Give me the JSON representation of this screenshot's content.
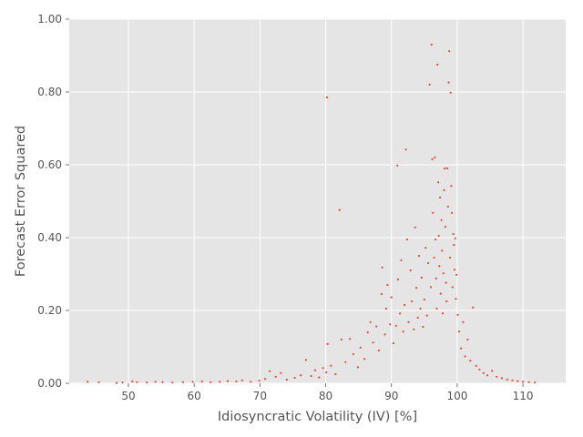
{
  "chart_data": {
    "type": "scatter",
    "xlabel": "Idiosyncratic Volatility (IV) [%]",
    "ylabel": "Forecast Error Squared",
    "xlim": [
      41,
      116.5
    ],
    "ylim": [
      0,
      1
    ],
    "xticks": [
      50,
      60,
      70,
      80,
      90,
      100,
      110
    ],
    "yticks": [
      0.0,
      0.2,
      0.4,
      0.6,
      0.8,
      1.0
    ],
    "xtick_labels": [
      "50",
      "60",
      "70",
      "80",
      "90",
      "100",
      "110"
    ],
    "ytick_labels": [
      "0.00",
      "0.20",
      "0.40",
      "0.60",
      "0.80",
      "1.00"
    ],
    "grid": true,
    "legend": "none",
    "colors": {
      "marker": "#E24A33",
      "background": "#E5E5E5",
      "grid": "#ffffff",
      "text": "#555555"
    },
    "series": [
      {
        "points": [
          [
            43.8,
            0.004
          ],
          [
            45.5,
            0.003
          ],
          [
            48.2,
            0.001
          ],
          [
            49.1,
            0.002
          ],
          [
            50.6,
            0.005
          ],
          [
            51.3,
            0.003
          ],
          [
            52.8,
            0.002
          ],
          [
            54.1,
            0.004
          ],
          [
            55.2,
            0.003
          ],
          [
            56.7,
            0.002
          ],
          [
            58.3,
            0.003
          ],
          [
            59.8,
            0.004
          ],
          [
            61.2,
            0.005
          ],
          [
            62.5,
            0.003
          ],
          [
            63.9,
            0.004
          ],
          [
            65.1,
            0.006
          ],
          [
            66.4,
            0.005
          ],
          [
            67.3,
            0.008
          ],
          [
            68.6,
            0.004
          ],
          [
            69.9,
            0.007
          ],
          [
            70.8,
            0.012
          ],
          [
            71.5,
            0.033
          ],
          [
            72.4,
            0.018
          ],
          [
            73.2,
            0.028
          ],
          [
            74.1,
            0.01
          ],
          [
            75.3,
            0.015
          ],
          [
            76.2,
            0.022
          ],
          [
            77.0,
            0.064
          ],
          [
            77.8,
            0.02
          ],
          [
            78.4,
            0.036
          ],
          [
            79.0,
            0.016
          ],
          [
            79.6,
            0.042
          ],
          [
            80.1,
            0.03
          ],
          [
            80.2,
            0.785
          ],
          [
            80.3,
            0.108
          ],
          [
            80.8,
            0.048
          ],
          [
            81.5,
            0.025
          ],
          [
            82.1,
            0.476
          ],
          [
            82.4,
            0.12
          ],
          [
            83.0,
            0.058
          ],
          [
            83.7,
            0.122
          ],
          [
            84.2,
            0.08
          ],
          [
            84.9,
            0.044
          ],
          [
            85.3,
            0.098
          ],
          [
            85.9,
            0.067
          ],
          [
            86.4,
            0.14
          ],
          [
            86.8,
            0.168
          ],
          [
            87.2,
            0.112
          ],
          [
            87.7,
            0.156
          ],
          [
            88.1,
            0.09
          ],
          [
            88.5,
            0.245
          ],
          [
            88.6,
            0.318
          ],
          [
            89.0,
            0.134
          ],
          [
            89.2,
            0.205
          ],
          [
            89.4,
            0.27
          ],
          [
            89.8,
            0.162
          ],
          [
            90.0,
            0.236
          ],
          [
            90.3,
            0.11
          ],
          [
            90.7,
            0.158
          ],
          [
            90.9,
            0.598
          ],
          [
            91.0,
            0.285
          ],
          [
            91.3,
            0.192
          ],
          [
            91.5,
            0.338
          ],
          [
            91.8,
            0.142
          ],
          [
            92.0,
            0.215
          ],
          [
            92.2,
            0.642
          ],
          [
            92.4,
            0.395
          ],
          [
            92.6,
            0.168
          ],
          [
            92.9,
            0.31
          ],
          [
            93.1,
            0.225
          ],
          [
            93.4,
            0.148
          ],
          [
            93.6,
            0.428
          ],
          [
            93.8,
            0.262
          ],
          [
            94.0,
            0.18
          ],
          [
            94.2,
            0.35
          ],
          [
            94.4,
            0.205
          ],
          [
            94.6,
            0.29
          ],
          [
            94.8,
            0.155
          ],
          [
            95.0,
            0.23
          ],
          [
            95.2,
            0.372
          ],
          [
            95.4,
            0.186
          ],
          [
            95.6,
            0.33
          ],
          [
            95.8,
            0.82
          ],
          [
            96.0,
            0.264
          ],
          [
            96.1,
            0.93
          ],
          [
            96.2,
            0.615
          ],
          [
            96.3,
            0.468
          ],
          [
            96.5,
            0.345
          ],
          [
            96.6,
            0.62
          ],
          [
            96.7,
            0.395
          ],
          [
            96.8,
            0.288
          ],
          [
            96.9,
            0.205
          ],
          [
            97.0,
            0.875
          ],
          [
            97.1,
            0.552
          ],
          [
            97.2,
            0.405
          ],
          [
            97.3,
            0.322
          ],
          [
            97.4,
            0.51
          ],
          [
            97.5,
            0.246
          ],
          [
            97.6,
            0.448
          ],
          [
            97.7,
            0.364
          ],
          [
            97.8,
            0.192
          ],
          [
            97.9,
            0.302
          ],
          [
            98.0,
            0.53
          ],
          [
            98.1,
            0.59
          ],
          [
            98.2,
            0.43
          ],
          [
            98.3,
            0.276
          ],
          [
            98.4,
            0.225
          ],
          [
            98.5,
            0.59
          ],
          [
            98.6,
            0.485
          ],
          [
            98.7,
            0.826
          ],
          [
            98.8,
            0.912
          ],
          [
            98.9,
            0.345
          ],
          [
            99.0,
            0.798
          ],
          [
            99.1,
            0.542
          ],
          [
            99.2,
            0.468
          ],
          [
            99.3,
            0.264
          ],
          [
            99.4,
            0.41
          ],
          [
            99.5,
            0.38
          ],
          [
            99.6,
            0.312
          ],
          [
            99.7,
            0.398
          ],
          [
            99.8,
            0.232
          ],
          [
            99.9,
            0.298
          ],
          [
            100.1,
            0.188
          ],
          [
            100.3,
            0.142
          ],
          [
            100.6,
            0.096
          ],
          [
            100.9,
            0.168
          ],
          [
            101.2,
            0.074
          ],
          [
            101.6,
            0.12
          ],
          [
            102.0,
            0.062
          ],
          [
            102.4,
            0.208
          ],
          [
            102.9,
            0.048
          ],
          [
            103.4,
            0.038
          ],
          [
            104.0,
            0.028
          ],
          [
            104.6,
            0.022
          ],
          [
            105.3,
            0.034
          ],
          [
            106.0,
            0.018
          ],
          [
            106.8,
            0.014
          ],
          [
            107.6,
            0.01
          ],
          [
            108.4,
            0.008
          ],
          [
            109.2,
            0.006
          ],
          [
            110.0,
            0.004
          ],
          [
            110.9,
            0.003
          ],
          [
            111.8,
            0.002
          ]
        ]
      }
    ]
  }
}
